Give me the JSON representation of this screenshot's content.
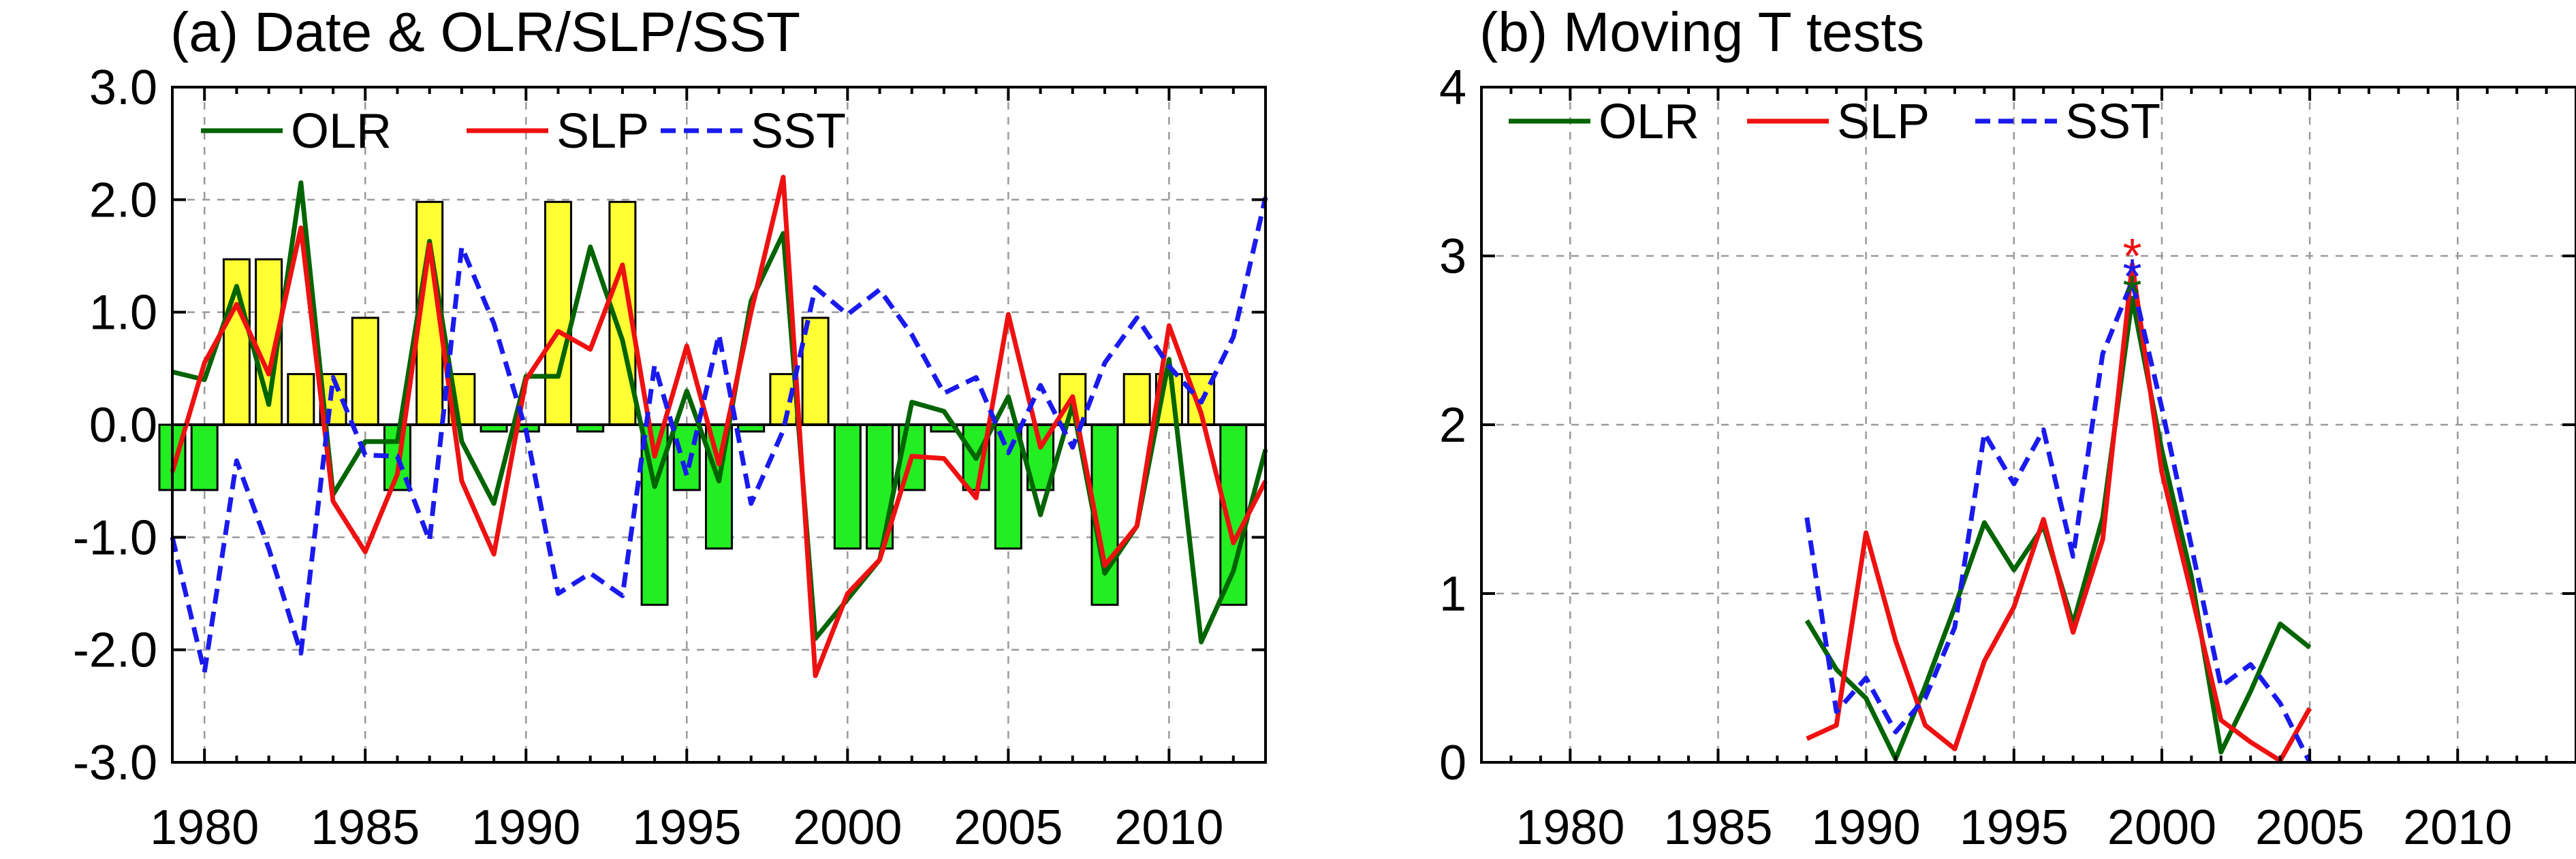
{
  "chart_data": [
    {
      "type": "bar",
      "title": "(a) Date & OLR/SLP/SST",
      "xlim": [
        1979,
        2013
      ],
      "ylim": [
        -3.0,
        3.0
      ],
      "xticks": [
        1980,
        1985,
        1990,
        1995,
        2000,
        2005,
        2010
      ],
      "yticks": [
        -3.0,
        -2.0,
        -1.0,
        0.0,
        1.0,
        2.0,
        3.0
      ],
      "ytick_labels": [
        "-3.0",
        "-2.0",
        "-1.0",
        "0.0",
        "1.0",
        "2.0",
        "3.0"
      ],
      "grid": true,
      "legend_position": "top-left",
      "bars": {
        "x": [
          1979,
          1980,
          1981,
          1982,
          1983,
          1984,
          1985,
          1986,
          1987,
          1988,
          1989,
          1990,
          1991,
          1992,
          1993,
          1994,
          1995,
          1996,
          1997,
          1998,
          1999,
          2000,
          2001,
          2002,
          2003,
          2004,
          2005,
          2006,
          2007,
          2008,
          2009,
          2010,
          2011,
          2012
        ],
        "values": [
          -0.58,
          -0.58,
          1.47,
          1.47,
          0.45,
          0.45,
          0.95,
          -0.58,
          1.98,
          0.45,
          -0.06,
          -0.06,
          1.98,
          -0.06,
          1.98,
          -1.6,
          -0.58,
          -1.1,
          -0.06,
          0.45,
          0.95,
          -1.1,
          -1.1,
          -0.58,
          -0.06,
          -0.58,
          -1.1,
          -0.58,
          0.45,
          -1.6,
          0.45,
          0.45,
          0.45,
          -1.6
        ],
        "positive_color": "#ffff33",
        "negative_color": "#22ee22"
      },
      "series": [
        {
          "name": "OLR",
          "color": "#006400",
          "dash": false,
          "x": [
            1979,
            1980,
            1981,
            1982,
            1983,
            1984,
            1985,
            1986,
            1987,
            1988,
            1989,
            1990,
            1991,
            1992,
            1993,
            1994,
            1995,
            1996,
            1997,
            1998,
            1999,
            2000,
            2001,
            2002,
            2003,
            2004,
            2005,
            2006,
            2007,
            2008,
            2009,
            2010,
            2011,
            2012,
            2013
          ],
          "values": [
            0.47,
            0.4,
            1.23,
            0.18,
            2.15,
            -0.62,
            -0.15,
            -0.15,
            1.63,
            -0.15,
            -0.7,
            0.43,
            0.43,
            1.58,
            0.75,
            -0.55,
            0.3,
            -0.5,
            1.1,
            1.7,
            -1.9,
            -1.55,
            -1.2,
            0.2,
            0.12,
            -0.3,
            0.25,
            -0.8,
            0.18,
            -1.32,
            -0.9,
            0.58,
            -1.93,
            -1.3,
            -0.22
          ]
        },
        {
          "name": "SLP",
          "color": "#ee1111",
          "dash": false,
          "x": [
            1979,
            1980,
            1981,
            1982,
            1983,
            1984,
            1985,
            1986,
            1987,
            1988,
            1989,
            1990,
            1991,
            1992,
            1993,
            1994,
            1995,
            1996,
            1997,
            1998,
            1999,
            2000,
            2001,
            2002,
            2003,
            2004,
            2005,
            2006,
            2007,
            2008,
            2009,
            2010,
            2011,
            2012,
            2013
          ],
          "values": [
            -0.42,
            0.55,
            1.07,
            0.45,
            1.75,
            -0.68,
            -1.13,
            -0.44,
            1.6,
            -0.5,
            -1.15,
            0.4,
            0.83,
            0.67,
            1.42,
            -0.28,
            0.7,
            -0.35,
            1.0,
            2.2,
            -2.23,
            -1.5,
            -1.2,
            -0.28,
            -0.3,
            -0.65,
            0.98,
            -0.2,
            0.25,
            -1.25,
            -0.9,
            0.88,
            0.1,
            -1.05,
            -0.5
          ]
        },
        {
          "name": "SST",
          "color": "#1a1aee",
          "dash": true,
          "x": [
            1979,
            1980,
            1981,
            1982,
            1983,
            1984,
            1985,
            1986,
            1987,
            1988,
            1989,
            1990,
            1991,
            1992,
            1993,
            1994,
            1995,
            1996,
            1997,
            1998,
            1999,
            2000,
            2001,
            2002,
            2003,
            2004,
            2005,
            2006,
            2007,
            2008,
            2009,
            2010,
            2011,
            2012,
            2013
          ],
          "values": [
            -1.0,
            -2.2,
            -0.32,
            -1.1,
            -2.03,
            0.42,
            -0.27,
            -0.28,
            -1.03,
            1.58,
            0.9,
            -0.05,
            -1.5,
            -1.32,
            -1.52,
            0.53,
            -0.45,
            0.8,
            -0.7,
            -0.05,
            1.22,
            0.98,
            1.2,
            0.8,
            0.28,
            0.42,
            -0.25,
            0.35,
            -0.2,
            0.55,
            0.95,
            0.52,
            0.2,
            0.78,
            2.02
          ]
        }
      ]
    },
    {
      "type": "line",
      "title": "(b) Moving T tests",
      "xlim": [
        1977,
        2014
      ],
      "ylim": [
        0,
        4
      ],
      "xticks": [
        1980,
        1985,
        1990,
        1995,
        2000,
        2005,
        2010
      ],
      "yticks": [
        0,
        1,
        2,
        3,
        4
      ],
      "ytick_labels": [
        "0",
        "1",
        "2",
        "3",
        "4"
      ],
      "grid": true,
      "legend_position": "top-left",
      "series": [
        {
          "name": "OLR",
          "color": "#006400",
          "dash": false,
          "x": [
            1988,
            1989,
            1990,
            1991,
            1992,
            1993,
            1994,
            1995,
            1996,
            1997,
            1998,
            1999,
            2000,
            2001,
            2002,
            2003,
            2004,
            2005
          ],
          "values": [
            0.84,
            0.55,
            0.38,
            0.02,
            0.45,
            0.92,
            1.42,
            1.14,
            1.4,
            0.82,
            1.45,
            2.75,
            1.85,
            1.1,
            0.06,
            0.42,
            0.82,
            0.68
          ]
        },
        {
          "name": "SLP",
          "color": "#ee1111",
          "dash": false,
          "x": [
            1988,
            1989,
            1990,
            1991,
            1992,
            1993,
            1994,
            1995,
            1996,
            1997,
            1998,
            1999,
            2000,
            2001,
            2002,
            2003,
            2004,
            2005
          ],
          "values": [
            0.14,
            0.22,
            1.36,
            0.72,
            0.22,
            0.08,
            0.6,
            0.92,
            1.44,
            0.77,
            1.32,
            2.95,
            1.72,
            1.0,
            0.25,
            0.12,
            0.01,
            0.32
          ]
        },
        {
          "name": "SST",
          "color": "#1a1aee",
          "dash": true,
          "x": [
            1988,
            1989,
            1990,
            1991,
            1992,
            1993,
            1994,
            1995,
            1996,
            1997,
            1998,
            1999,
            2000,
            2001,
            2002,
            2003,
            2004,
            2005
          ],
          "values": [
            1.45,
            0.3,
            0.5,
            0.18,
            0.38,
            0.8,
            1.95,
            1.65,
            1.97,
            1.22,
            2.42,
            2.85,
            2.1,
            1.28,
            0.45,
            0.58,
            0.35,
            0.0
          ]
        }
      ],
      "markers": [
        {
          "series": "SLP",
          "x": 1999,
          "y": 3.02,
          "symbol": "*",
          "color": "#ee1111"
        },
        {
          "series": "SST",
          "x": 1999,
          "y": 2.9,
          "symbol": "*",
          "color": "#1a1aee"
        },
        {
          "series": "OLR",
          "x": 1999,
          "y": 2.8,
          "symbol": "*",
          "color": "#006400"
        }
      ]
    }
  ]
}
